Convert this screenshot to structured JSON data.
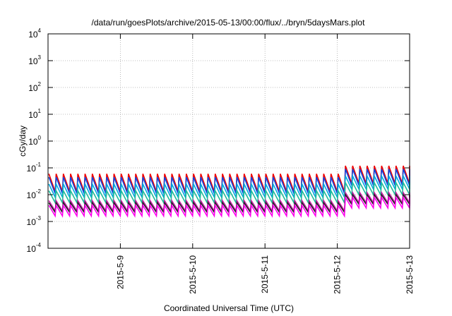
{
  "chart_data": {
    "type": "line",
    "title": "/data/run/goesPlots/archive/2015-05-13/00:00/flux/../bryn/5daysMars.plot",
    "xlabel": "Coordinated Universal Time (UTC)",
    "ylabel": "cGy/day",
    "yscale": "log",
    "ylim": [
      0.0001,
      10000
    ],
    "xlim": [
      "2015-05-08 00:00",
      "2015-05-13 00:00"
    ],
    "grid": true,
    "y_ticks": [
      {
        "base": "10",
        "exp": "-4"
      },
      {
        "base": "10",
        "exp": "-3"
      },
      {
        "base": "10",
        "exp": "-2"
      },
      {
        "base": "10",
        "exp": "-1"
      },
      {
        "base": "10",
        "exp": "0"
      },
      {
        "base": "10",
        "exp": "1"
      },
      {
        "base": "10",
        "exp": "2"
      },
      {
        "base": "10",
        "exp": "3"
      },
      {
        "base": "10",
        "exp": "4"
      }
    ],
    "x_ticks": [
      {
        "label": "2015-5-9",
        "date": "2015-05-09"
      },
      {
        "label": "2015-5-10",
        "date": "2015-05-10"
      },
      {
        "label": "2015-5-11",
        "date": "2015-05-11"
      },
      {
        "label": "2015-5-12",
        "date": "2015-05-12"
      },
      {
        "label": "2015-5-13",
        "date": "2015-05-13"
      }
    ],
    "sawtooth_period_hours": 2.4,
    "enhanced_segment": {
      "start": "2015-05-12 02:00",
      "end": "2015-05-13 00:00",
      "factor": 2.0
    },
    "series": [
      {
        "color": "#ee0000",
        "peak": 0.06,
        "trough": 0.013
      },
      {
        "color": "#1144dd",
        "peak": 0.045,
        "trough": 0.011
      },
      {
        "color": "#00aadd",
        "peak": 0.025,
        "trough": 0.008
      },
      {
        "color": "#22bb99",
        "peak": 0.014,
        "trough": 0.005
      },
      {
        "color": "#cc22aa",
        "peak": 0.006,
        "trough": 0.0025
      },
      {
        "color": "#222222",
        "peak": 0.005,
        "trough": 0.0022
      },
      {
        "color": "#ff00ee",
        "peak": 0.004,
        "trough": 0.0016
      }
    ]
  }
}
